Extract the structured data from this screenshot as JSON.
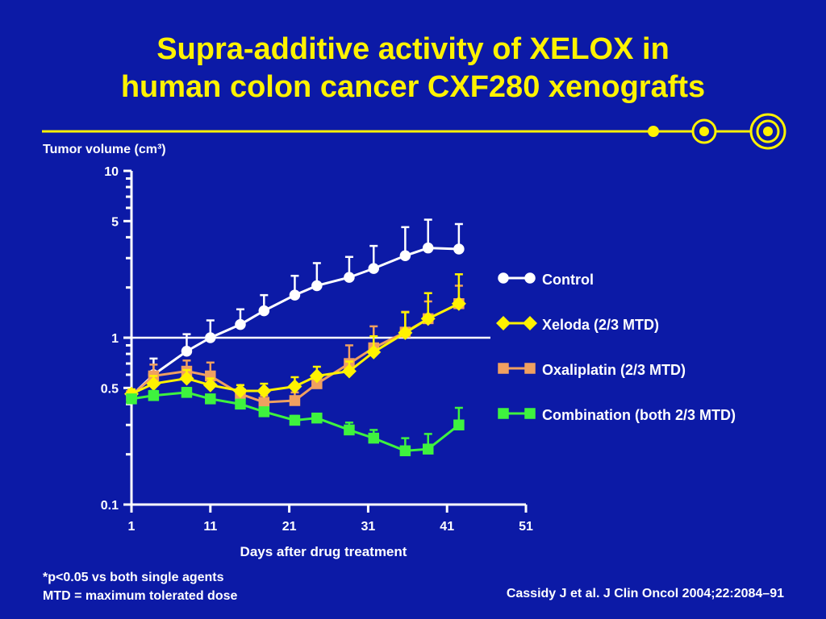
{
  "slide": {
    "title_line1": "Supra-additive activity of XELOX in",
    "title_line2": "human colon cancer CXF280 xenografts",
    "footnote_line1": "*p<0.05 vs both single agents",
    "footnote_line2": "MTD = maximum tolerated dose",
    "citation": "Cassidy J et al. J Clin Oncol 2004;22:2084–91"
  },
  "colors": {
    "background": "#0c1aa6",
    "title": "#fff200",
    "divider": "#fff200",
    "axes": "#ffffff"
  },
  "chart_data": {
    "type": "line",
    "title": "",
    "ylabel": "Tumor volume (cm³)",
    "xlabel": "Days after drug treatment",
    "y_scale": "log",
    "ylim": [
      0.1,
      10
    ],
    "xlim": [
      1,
      51
    ],
    "x_ticks": [
      "1",
      "11",
      "21",
      "31",
      "41",
      "51"
    ],
    "y_ticks": [
      "10",
      "5",
      "1",
      "0.5",
      "0.1"
    ],
    "x_tick_values": [
      1,
      11,
      21,
      31,
      41,
      51
    ],
    "y_tick_values": [
      10,
      5,
      1,
      0.5,
      0.1
    ],
    "reference_line": 1,
    "grid": false,
    "legend_position": "right",
    "series": [
      {
        "name": "Control",
        "color": "#ffffff",
        "marker": "circle",
        "x": [
          1,
          3.8,
          8,
          11,
          14.8,
          17.8,
          21.7,
          24.5,
          28.6,
          31.7,
          35.7,
          38.6,
          42.5
        ],
        "y": [
          0.45,
          0.6,
          0.83,
          1.0,
          1.2,
          1.45,
          1.8,
          2.05,
          2.3,
          2.6,
          3.1,
          3.45,
          3.4
        ],
        "err": [
          0.04,
          0.15,
          0.22,
          0.27,
          0.28,
          0.35,
          0.55,
          0.75,
          0.75,
          0.95,
          1.5,
          1.65,
          1.4
        ]
      },
      {
        "name": "Xeloda (2/3 MTD)",
        "color": "#fff200",
        "marker": "diamond",
        "x": [
          1,
          3.8,
          8,
          11,
          14.8,
          17.8,
          21.7,
          24.5,
          28.6,
          31.7,
          35.7,
          38.6,
          42.5
        ],
        "y": [
          0.46,
          0.53,
          0.57,
          0.52,
          0.48,
          0.48,
          0.51,
          0.59,
          0.63,
          0.82,
          1.07,
          1.3,
          1.6
        ],
        "err": [
          0.03,
          0.06,
          0.07,
          0.05,
          0.04,
          0.05,
          0.07,
          0.08,
          0.09,
          0.2,
          0.35,
          0.55,
          0.8
        ]
      },
      {
        "name": "Oxaliplatin (2/3 MTD)",
        "color": "#f0a060",
        "marker": "square",
        "x": [
          1,
          3.8,
          8,
          11,
          14.8,
          17.8,
          21.7,
          24.5,
          28.6,
          31.7,
          35.7,
          38.6,
          42.5
        ],
        "y": [
          0.45,
          0.59,
          0.63,
          0.59,
          0.46,
          0.41,
          0.42,
          0.53,
          0.7,
          0.87,
          1.08,
          1.3,
          1.6
        ],
        "err": [
          0.03,
          0.1,
          0.1,
          0.12,
          0.06,
          0.04,
          0.05,
          0.07,
          0.2,
          0.3,
          0.35,
          0.35,
          0.45
        ]
      },
      {
        "name": "Combination (both 2/3 MTD)",
        "color": "#3ef33e",
        "marker": "square",
        "x": [
          1,
          3.8,
          8,
          11,
          14.8,
          17.8,
          21.7,
          24.5,
          28.6,
          31.7,
          35.7,
          38.6,
          42.5
        ],
        "y": [
          0.43,
          0.45,
          0.47,
          0.43,
          0.4,
          0.36,
          0.32,
          0.33,
          0.28,
          0.25,
          0.21,
          0.215,
          0.3
        ],
        "err": [
          0.02,
          0.03,
          0.03,
          0.02,
          0.02,
          0.02,
          0.02,
          0.02,
          0.03,
          0.03,
          0.04,
          0.05,
          0.08
        ]
      }
    ]
  }
}
